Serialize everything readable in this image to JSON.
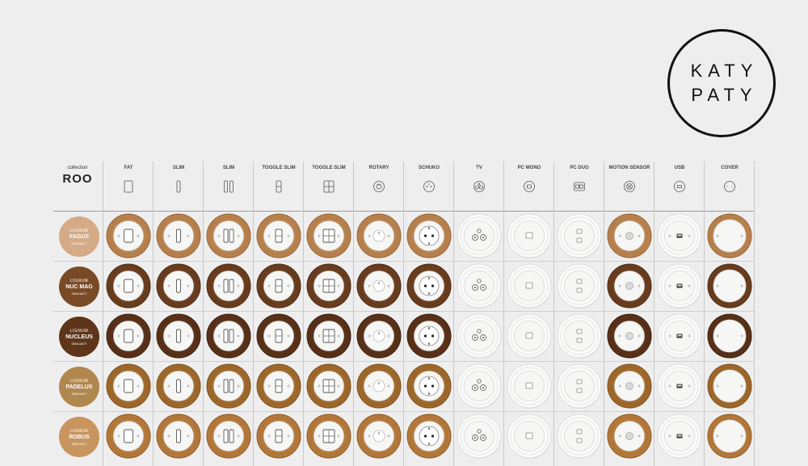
{
  "logo": {
    "line1": "KATY",
    "line2": "PATY"
  },
  "collection": {
    "label": "collection",
    "name": "ROO"
  },
  "columns": [
    {
      "label": "FAT",
      "kind": "fat"
    },
    {
      "label": "SLIM",
      "kind": "slim"
    },
    {
      "label": "SLIM",
      "kind": "slim2"
    },
    {
      "label": "TOGGLE SLIM",
      "kind": "toggle"
    },
    {
      "label": "TOGGLE SLIM",
      "kind": "toggle2"
    },
    {
      "label": "ROTARY",
      "kind": "rotary"
    },
    {
      "label": "SCHUKO",
      "kind": "schuko"
    },
    {
      "label": "TV",
      "kind": "tv"
    },
    {
      "label": "PC MONO",
      "kind": "pcmono"
    },
    {
      "label": "PC DUO",
      "kind": "pcduo"
    },
    {
      "label": "MOTION SENSOR",
      "kind": "motion"
    },
    {
      "label": "USB",
      "kind": "usb"
    },
    {
      "label": "COVER",
      "kind": "cover"
    }
  ],
  "rows": [
    {
      "line1": "LIGNUM",
      "line2": "FAGUS",
      "line3": "SEMI-MATT",
      "color": "#d4ab86",
      "wood": "#b9834f",
      "wood_dark": "#9a6434"
    },
    {
      "line1": "LIGNUM",
      "line2": "NUC MAG",
      "line3": "SEMI-MATT",
      "color": "#7a4a26",
      "wood": "#6b3e20",
      "wood_dark": "#4e2a12"
    },
    {
      "line1": "LIGNUM",
      "line2": "NUCLEUS",
      "line3": "SEMI-MATT",
      "color": "#5e3519",
      "wood": "#5a321a",
      "wood_dark": "#3e200d"
    },
    {
      "line1": "LIGNUM",
      "line2": "PADELUS",
      "line3": "SEMI-MATT",
      "color": "#b0884e",
      "wood": "#a06a2c",
      "wood_dark": "#7f4f1c"
    },
    {
      "line1": "LIGNUM",
      "line2": "ROBUS",
      "line3": "SEMI-MATT",
      "color": "#c9955e",
      "wood": "#b57a3c",
      "wood_dark": "#925b24"
    }
  ]
}
